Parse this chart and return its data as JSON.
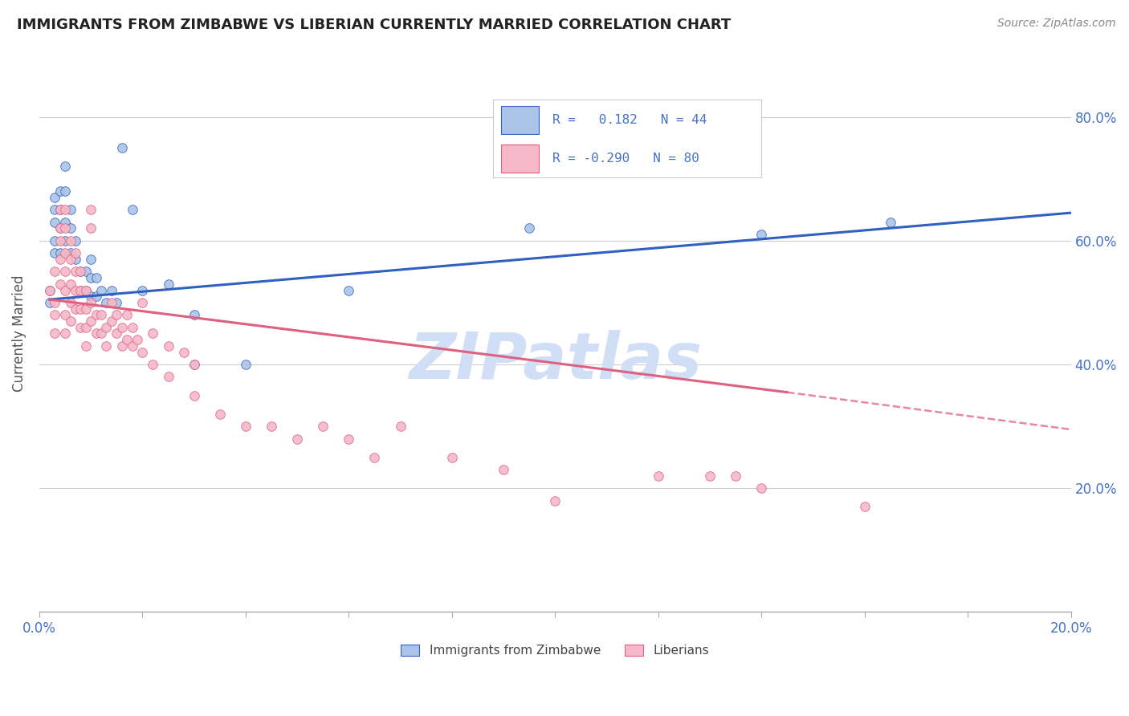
{
  "title": "IMMIGRANTS FROM ZIMBABWE VS LIBERIAN CURRENTLY MARRIED CORRELATION CHART",
  "source": "Source: ZipAtlas.com",
  "ylabel": "Currently Married",
  "r1": 0.182,
  "n1": 44,
  "r2": -0.29,
  "n2": 80,
  "color_zimbabwe": "#aac4e8",
  "color_liberian": "#f5b8c8",
  "trend_color_zimbabwe": "#3060c0",
  "trend_color_liberian": "#e06080",
  "watermark_color": "#d0dff5",
  "xlim": [
    0.0,
    0.2
  ],
  "ylim": [
    0.0,
    0.9
  ],
  "zimbabwe_scatter": [
    [
      0.002,
      0.5
    ],
    [
      0.002,
      0.52
    ],
    [
      0.003,
      0.63
    ],
    [
      0.003,
      0.65
    ],
    [
      0.003,
      0.67
    ],
    [
      0.003,
      0.6
    ],
    [
      0.003,
      0.58
    ],
    [
      0.004,
      0.68
    ],
    [
      0.004,
      0.65
    ],
    [
      0.004,
      0.62
    ],
    [
      0.004,
      0.58
    ],
    [
      0.005,
      0.72
    ],
    [
      0.005,
      0.68
    ],
    [
      0.005,
      0.63
    ],
    [
      0.005,
      0.6
    ],
    [
      0.006,
      0.65
    ],
    [
      0.006,
      0.62
    ],
    [
      0.006,
      0.58
    ],
    [
      0.007,
      0.6
    ],
    [
      0.007,
      0.57
    ],
    [
      0.008,
      0.55
    ],
    [
      0.008,
      0.52
    ],
    [
      0.009,
      0.55
    ],
    [
      0.009,
      0.52
    ],
    [
      0.01,
      0.57
    ],
    [
      0.01,
      0.54
    ],
    [
      0.01,
      0.51
    ],
    [
      0.011,
      0.54
    ],
    [
      0.011,
      0.51
    ],
    [
      0.012,
      0.52
    ],
    [
      0.013,
      0.5
    ],
    [
      0.014,
      0.52
    ],
    [
      0.015,
      0.5
    ],
    [
      0.016,
      0.75
    ],
    [
      0.018,
      0.65
    ],
    [
      0.02,
      0.52
    ],
    [
      0.025,
      0.53
    ],
    [
      0.03,
      0.4
    ],
    [
      0.03,
      0.48
    ],
    [
      0.04,
      0.4
    ],
    [
      0.06,
      0.52
    ],
    [
      0.095,
      0.62
    ],
    [
      0.14,
      0.61
    ],
    [
      0.165,
      0.63
    ]
  ],
  "liberian_scatter": [
    [
      0.002,
      0.52
    ],
    [
      0.003,
      0.5
    ],
    [
      0.003,
      0.48
    ],
    [
      0.003,
      0.45
    ],
    [
      0.003,
      0.55
    ],
    [
      0.004,
      0.65
    ],
    [
      0.004,
      0.62
    ],
    [
      0.004,
      0.6
    ],
    [
      0.004,
      0.57
    ],
    [
      0.004,
      0.53
    ],
    [
      0.005,
      0.65
    ],
    [
      0.005,
      0.62
    ],
    [
      0.005,
      0.58
    ],
    [
      0.005,
      0.55
    ],
    [
      0.005,
      0.52
    ],
    [
      0.005,
      0.48
    ],
    [
      0.005,
      0.45
    ],
    [
      0.006,
      0.6
    ],
    [
      0.006,
      0.57
    ],
    [
      0.006,
      0.53
    ],
    [
      0.006,
      0.5
    ],
    [
      0.006,
      0.47
    ],
    [
      0.007,
      0.58
    ],
    [
      0.007,
      0.55
    ],
    [
      0.007,
      0.52
    ],
    [
      0.007,
      0.49
    ],
    [
      0.008,
      0.55
    ],
    [
      0.008,
      0.52
    ],
    [
      0.008,
      0.49
    ],
    [
      0.008,
      0.46
    ],
    [
      0.009,
      0.52
    ],
    [
      0.009,
      0.49
    ],
    [
      0.009,
      0.46
    ],
    [
      0.009,
      0.43
    ],
    [
      0.01,
      0.5
    ],
    [
      0.01,
      0.47
    ],
    [
      0.01,
      0.65
    ],
    [
      0.01,
      0.62
    ],
    [
      0.011,
      0.48
    ],
    [
      0.011,
      0.45
    ],
    [
      0.012,
      0.48
    ],
    [
      0.012,
      0.45
    ],
    [
      0.013,
      0.46
    ],
    [
      0.013,
      0.43
    ],
    [
      0.014,
      0.5
    ],
    [
      0.014,
      0.47
    ],
    [
      0.015,
      0.48
    ],
    [
      0.015,
      0.45
    ],
    [
      0.016,
      0.46
    ],
    [
      0.016,
      0.43
    ],
    [
      0.017,
      0.48
    ],
    [
      0.017,
      0.44
    ],
    [
      0.018,
      0.46
    ],
    [
      0.018,
      0.43
    ],
    [
      0.019,
      0.44
    ],
    [
      0.02,
      0.5
    ],
    [
      0.02,
      0.42
    ],
    [
      0.022,
      0.45
    ],
    [
      0.022,
      0.4
    ],
    [
      0.025,
      0.43
    ],
    [
      0.025,
      0.38
    ],
    [
      0.028,
      0.42
    ],
    [
      0.03,
      0.4
    ],
    [
      0.03,
      0.35
    ],
    [
      0.035,
      0.32
    ],
    [
      0.04,
      0.3
    ],
    [
      0.045,
      0.3
    ],
    [
      0.05,
      0.28
    ],
    [
      0.055,
      0.3
    ],
    [
      0.06,
      0.28
    ],
    [
      0.065,
      0.25
    ],
    [
      0.07,
      0.3
    ],
    [
      0.08,
      0.25
    ],
    [
      0.09,
      0.23
    ],
    [
      0.1,
      0.18
    ],
    [
      0.12,
      0.22
    ],
    [
      0.13,
      0.22
    ],
    [
      0.135,
      0.22
    ],
    [
      0.14,
      0.2
    ],
    [
      0.16,
      0.17
    ]
  ],
  "trend_zim_x0": 0.002,
  "trend_zim_x1": 0.2,
  "trend_zim_y0": 0.505,
  "trend_zim_y1": 0.645,
  "trend_lib_x0": 0.002,
  "trend_lib_solid_x1": 0.145,
  "trend_lib_dash_x1": 0.2,
  "trend_lib_y0": 0.505,
  "trend_lib_y1_solid": 0.355,
  "trend_lib_y1_dash": 0.295
}
